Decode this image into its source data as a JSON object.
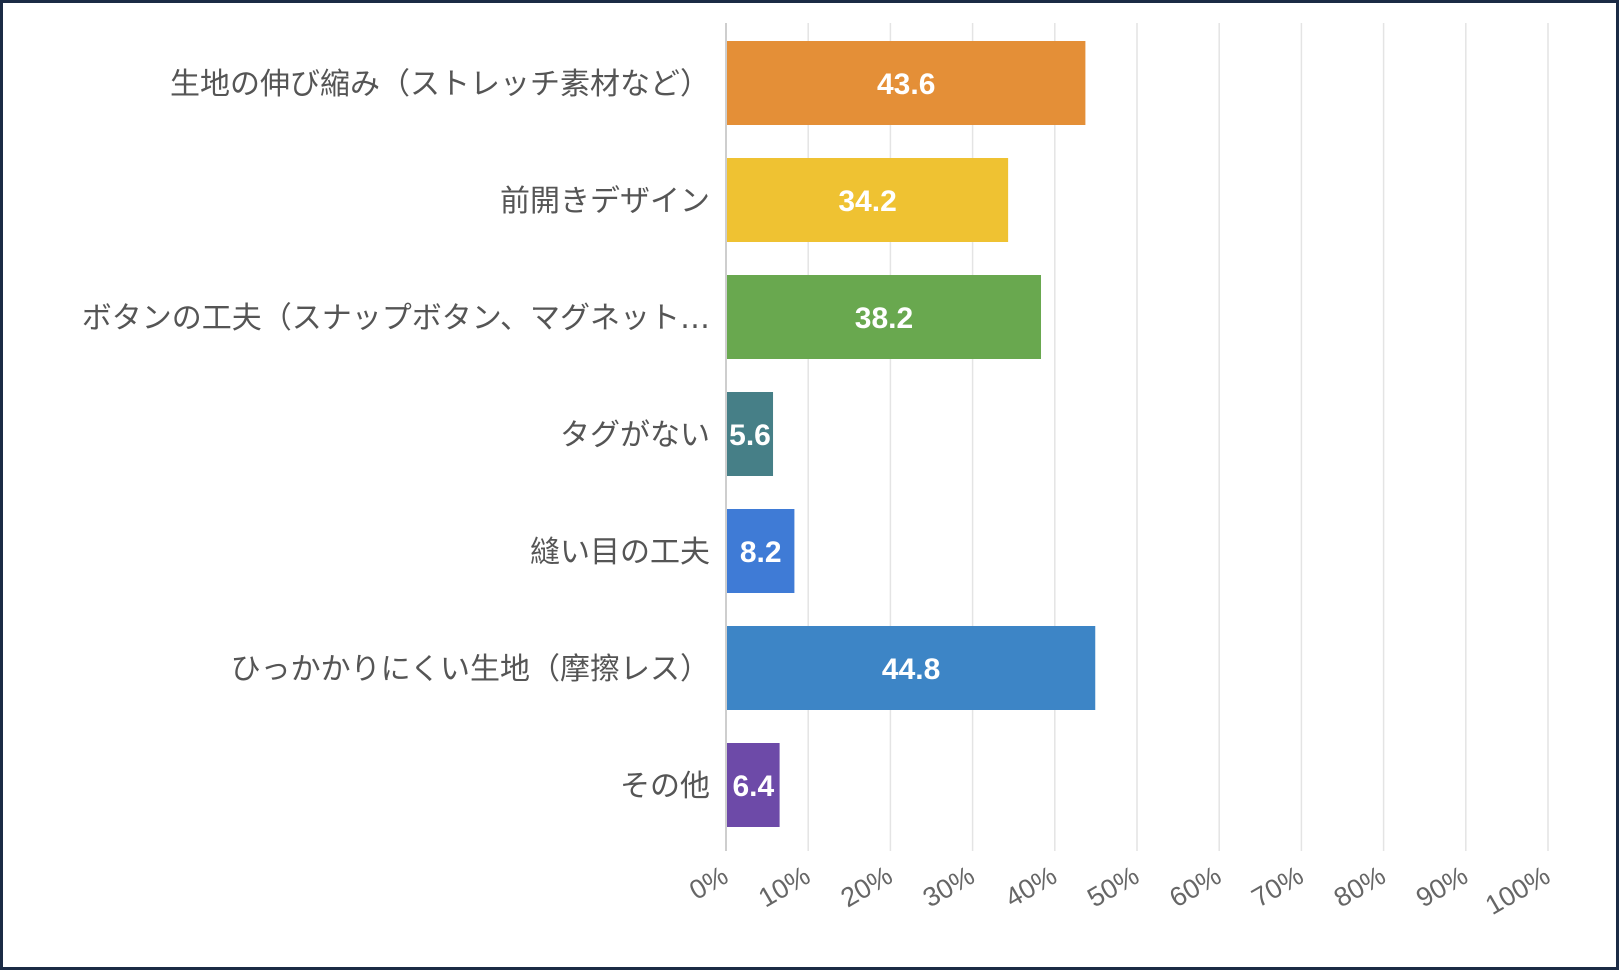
{
  "chart_data": {
    "type": "bar",
    "orientation": "horizontal",
    "categories": [
      "生地の伸び縮み（ストレッチ素材など）",
      "前開きデザイン",
      "ボタンの工夫（スナップボタン、マグネット…",
      "タグがない",
      "縫い目の工夫",
      "ひっかかりにくい生地（摩擦レス）",
      "その他"
    ],
    "values": [
      43.6,
      34.2,
      38.2,
      5.6,
      8.2,
      44.8,
      6.4
    ],
    "value_labels": [
      "43.6",
      "34.2",
      "38.2",
      "5.6",
      "8.2",
      "44.8",
      "6.4"
    ],
    "colors": [
      "#e48f37",
      "#efc232",
      "#69a84f",
      "#467f87",
      "#3f7bd6",
      "#3d85c6",
      "#6d4aa8"
    ],
    "xlim": [
      0,
      100
    ],
    "x_ticks": [
      "0%",
      "10%",
      "20%",
      "30%",
      "40%",
      "50%",
      "60%",
      "70%",
      "80%",
      "90%",
      "100%"
    ],
    "grid": true,
    "legend": "none",
    "title": "",
    "xlabel": "",
    "ylabel": ""
  }
}
